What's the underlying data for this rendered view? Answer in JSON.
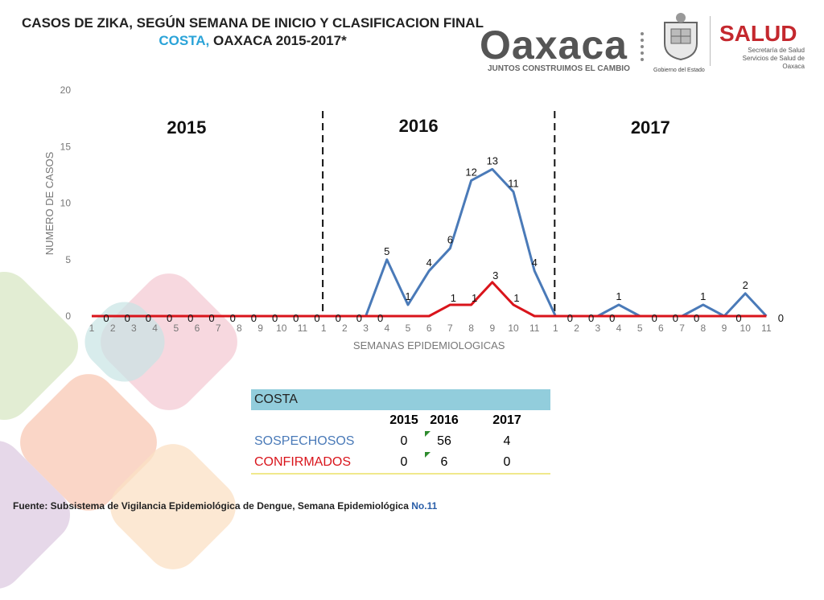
{
  "title": {
    "line1": "CASOS DE ZIKA, SEGÚN SEMANA DE INICIO Y CLASIFICACION FINAL",
    "region": "COSTA,",
    "line2_rest": " OAXACA 2015-2017*"
  },
  "logos": {
    "oaxaca": "Oaxaca",
    "tagline": "JUNTOS CONSTRUIMOS EL CAMBIO",
    "gobierno": "Gobierno del Estado",
    "salud": "SALUD",
    "salud_sub1": "Secretaría de Salud",
    "salud_sub2": "Servicios de Salud de Oaxaca"
  },
  "colors": {
    "sospechosos": "#4a7ab8",
    "confirmados": "#d9141b",
    "accent_blue": "#2aa3d8",
    "table_header": "#92cddc"
  },
  "chart_data": {
    "type": "line",
    "xlabel": "SEMANAS EPIDEMIOLOGICAS",
    "ylabel": "NUMERO DE CASOS",
    "ylim": [
      0,
      20
    ],
    "yticks": [
      0,
      5,
      10,
      15,
      20
    ],
    "year_labels": [
      "2015",
      "2016",
      "2017"
    ],
    "categories": [
      "1",
      "2",
      "3",
      "4",
      "5",
      "6",
      "7",
      "8",
      "9",
      "10",
      "11",
      "1",
      "2",
      "3",
      "4",
      "5",
      "6",
      "7",
      "8",
      "9",
      "10",
      "11",
      "1",
      "2",
      "3",
      "4",
      "5",
      "6",
      "7",
      "8",
      "9",
      "10",
      "11"
    ],
    "series": [
      {
        "values": [
          0,
          0,
          0,
          0,
          0,
          0,
          0,
          0,
          0,
          0,
          0,
          0,
          0,
          0,
          5,
          1,
          4,
          6,
          12,
          13,
          11,
          4,
          0,
          0,
          0,
          1,
          0,
          0,
          0,
          1,
          0,
          2,
          0
        ]
      },
      {
        "values": [
          0,
          0,
          0,
          0,
          0,
          0,
          0,
          0,
          0,
          0,
          0,
          0,
          0,
          0,
          0,
          0,
          0,
          1,
          1,
          3,
          1,
          0,
          0,
          0,
          0,
          0,
          0,
          0,
          0,
          0,
          0,
          0,
          0
        ]
      }
    ],
    "grid": false,
    "legend": "none"
  },
  "table": {
    "header": "COSTA",
    "years": [
      "2015",
      "2016",
      "2017"
    ],
    "rows": [
      {
        "name": "SOSPECHOSOS",
        "values": [
          "0",
          "56",
          "4"
        ]
      },
      {
        "name": "CONFIRMADOS",
        "values": [
          "0",
          "6",
          "0"
        ]
      }
    ]
  },
  "source": {
    "text": "Fuente: Subsistema  de Vigilancia Epidemiológica de Dengue, Semana Epidemiológica ",
    "number": "No.11"
  }
}
